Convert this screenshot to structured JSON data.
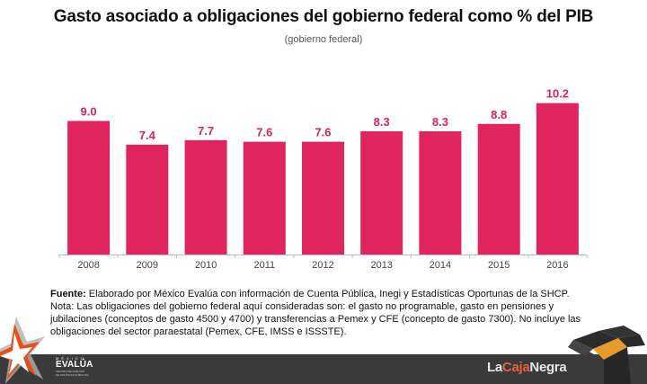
{
  "chart_data": {
    "type": "bar",
    "title": "Gasto asociado a obligaciones del gobierno federal como % del PIB",
    "subtitle": "(gobierno federal)",
    "xlabel": "",
    "ylabel": "",
    "categories": [
      "2008",
      "2009",
      "2010",
      "2011",
      "2012",
      "2013",
      "2014",
      "2015",
      "2016"
    ],
    "values": [
      9.0,
      7.4,
      7.7,
      7.6,
      7.6,
      8.3,
      8.3,
      8.8,
      10.2
    ],
    "data_labels": [
      "9.0",
      "7.4",
      "7.7",
      "7.6",
      "7.6",
      "8.3",
      "8.3",
      "8.8",
      "10.2"
    ],
    "ylim": [
      0,
      10.2
    ],
    "grid": false,
    "legend": "none",
    "colors": {
      "bar": "#e0245e",
      "label": "#d6245a",
      "axis": "#bbbbbb",
      "tick_text": "#444444"
    }
  },
  "note": {
    "source_label": "Fuente:",
    "source_text": " Elaborado por México Evalúa con información de Cuenta Pública, Inegi y Estadísticas Oportunas de la SHCP.",
    "text": "Nota: Las obligaciones del gobierno federal aquí consideradas son: el gasto no programable, gasto en pensiones y jubilaciones (conceptos de gasto 4500 y 4700) y transferencias a Pemex y CFE (concepto de gasto 7300). No incluye las obligaciones del sector paraestatal (Pemex, CFE, IMSS e ISSSTE)."
  },
  "footer": {
    "logo_left": {
      "top": "MÉXICO",
      "name": "EVALÚA",
      "sub1": "CENTRO DE ANÁLISIS",
      "sub2": "DE POLÍTICAS PÚBLICAS"
    },
    "logo_right": {
      "part1": "La",
      "part2": "Caja",
      "part3": "Negra"
    },
    "colors": {
      "bar": "#3a3a3a",
      "accent": "#e8613a"
    }
  }
}
